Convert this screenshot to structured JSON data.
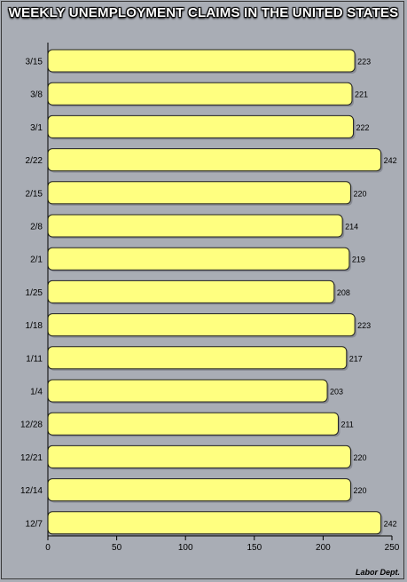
{
  "title": "WEEKLY UNEMPLOYMENT CLAIMS IN THE UNITED STATES",
  "source": "Labor Dept.",
  "colors": {
    "bar": "#ffff80",
    "background": "#a9adb5"
  },
  "chart_data": {
    "type": "bar",
    "orientation": "horizontal",
    "categories": [
      "3/15",
      "3/8",
      "3/1",
      "2/22",
      "2/15",
      "2/8",
      "2/1",
      "1/25",
      "1/18",
      "1/11",
      "1/4",
      "12/28",
      "12/21",
      "12/14",
      "12/7"
    ],
    "values": [
      223,
      221,
      222,
      242,
      220,
      214,
      219,
      208,
      223,
      217,
      203,
      211,
      220,
      220,
      242
    ],
    "xlim": [
      0,
      250
    ],
    "xticks": [
      0,
      50,
      100,
      150,
      200,
      250
    ],
    "grid": false,
    "data_labels": true
  }
}
